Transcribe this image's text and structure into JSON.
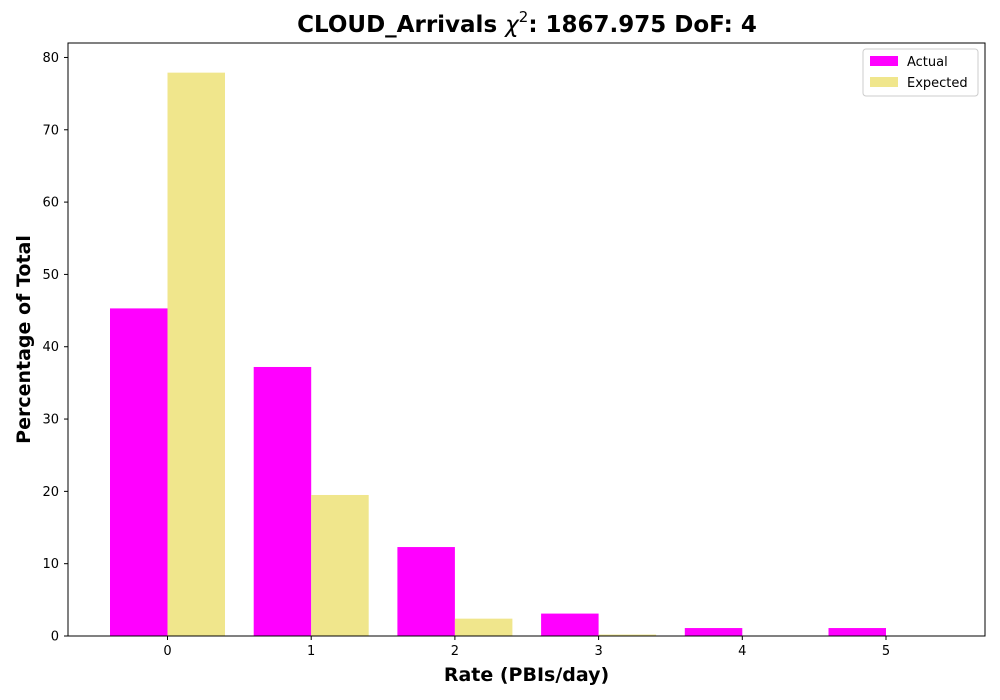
{
  "chart_data": {
    "type": "bar",
    "title": {
      "prefix": "CLOUD_Arrivals ",
      "chi_symbol": "χ",
      "superscript": "2",
      "suffix": ": 1867.975 DoF: 4"
    },
    "xlabel": "Rate (PBIs/day)",
    "ylabel": "Percentage of Total",
    "categories": [
      "0",
      "1",
      "2",
      "3",
      "4",
      "5"
    ],
    "y_ticks": [
      "0",
      "10",
      "20",
      "30",
      "40",
      "50",
      "60",
      "70",
      "80"
    ],
    "ylim": [
      0,
      82
    ],
    "series": [
      {
        "name": "Actual",
        "color": "#ff00ff",
        "values": [
          45.3,
          37.2,
          12.3,
          3.1,
          1.1,
          1.1
        ]
      },
      {
        "name": "Expected",
        "color": "#f0e68c",
        "values": [
          77.9,
          19.5,
          2.4,
          0.2,
          0.0,
          0.0
        ]
      }
    ],
    "legend_position": "top-right",
    "grid": false
  }
}
